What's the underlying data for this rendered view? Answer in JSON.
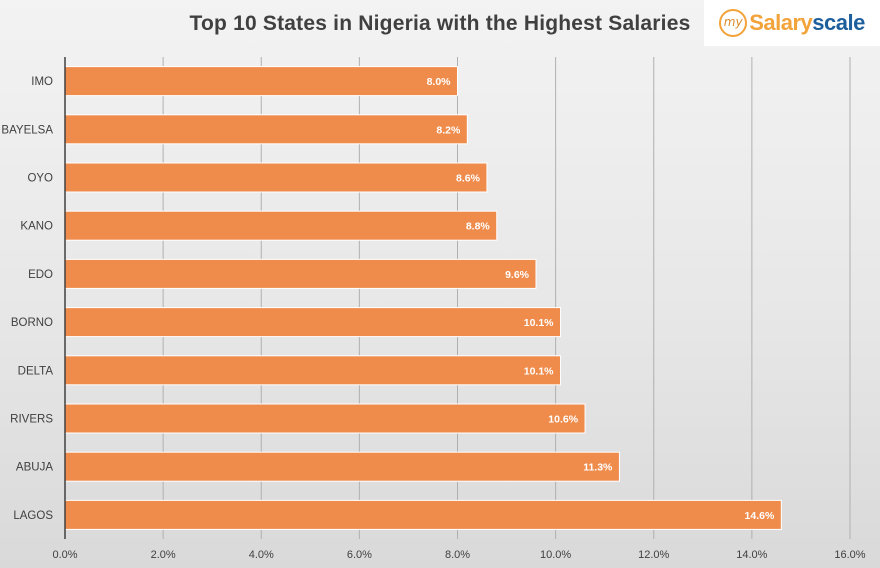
{
  "logo": {
    "prefix": "my",
    "part1": "Salary",
    "part2": "scale"
  },
  "chart_data": {
    "type": "bar",
    "orientation": "horizontal",
    "title": "Top 10 States in Nigeria with the Highest Salaries",
    "categories": [
      "IMO",
      "BAYELSA",
      "OYO",
      "KANO",
      "EDO",
      "BORNO",
      "DELTA",
      "RIVERS",
      "ABUJA",
      "LAGOS"
    ],
    "values": [
      8.0,
      8.2,
      8.6,
      8.8,
      9.6,
      10.1,
      10.1,
      10.6,
      11.3,
      14.6
    ],
    "value_labels": [
      "8.0%",
      "8.2%",
      "8.6%",
      "8.8%",
      "9.6%",
      "10.1%",
      "10.1%",
      "10.6%",
      "11.3%",
      "14.6%"
    ],
    "xticks": [
      0,
      2,
      4,
      6,
      8,
      10,
      12,
      14,
      16
    ],
    "xtick_labels": [
      "0.0%",
      "2.0%",
      "4.0%",
      "6.0%",
      "8.0%",
      "10.0%",
      "12.0%",
      "14.0%",
      "16.0%"
    ],
    "xlim": [
      0,
      16
    ],
    "grid": true,
    "legend": "none",
    "colors": {
      "bar": "#ef8c4c",
      "grid": "#b0b0b0",
      "axis": "#404040",
      "text": "#404040",
      "value_label": "#ffffff"
    }
  }
}
